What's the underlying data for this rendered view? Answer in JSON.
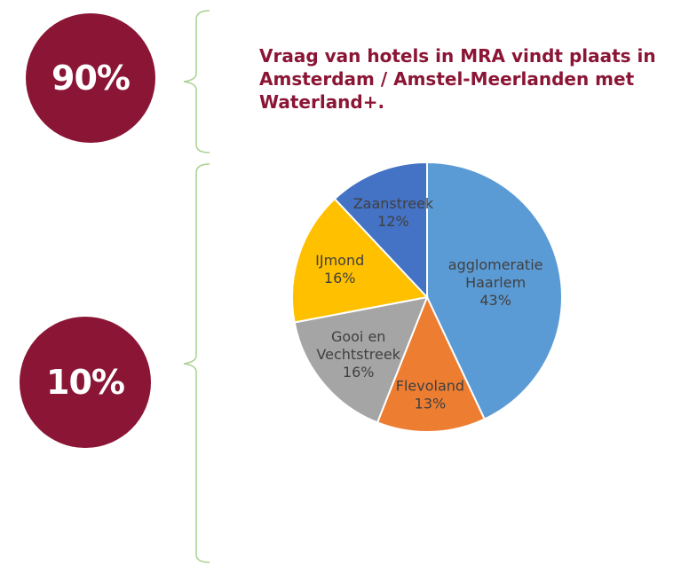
{
  "header": {
    "share_top": "90%",
    "share_bottom": "10%",
    "headline_lines": [
      "Vraag van hotels in MRA vindt plaats in",
      "Amsterdam / Amstel-Meerlanden met",
      "Waterland+."
    ]
  },
  "chart_data": {
    "type": "pie",
    "title": "",
    "slices": [
      {
        "label_lines": [
          "agglomeratie",
          "Haarlem"
        ],
        "value": 43,
        "value_label": "43%",
        "color": "#5b9bd5"
      },
      {
        "label_lines": [
          "Flevoland"
        ],
        "value": 13,
        "value_label": "13%",
        "color": "#ed7d31"
      },
      {
        "label_lines": [
          "Gooi en",
          "Vechtstreek"
        ],
        "value": 16,
        "value_label": "16%",
        "color": "#a5a5a5"
      },
      {
        "label_lines": [
          "IJmond"
        ],
        "value": 16,
        "value_label": "16%",
        "color": "#ffc000"
      },
      {
        "label_lines": [
          "Zaanstreek"
        ],
        "value": 12,
        "value_label": "12%",
        "color": "#4472c4"
      }
    ],
    "start_angle": "12 o'clock",
    "direction": "clockwise",
    "legend": "none",
    "bracket_color": "#a9d18e"
  }
}
